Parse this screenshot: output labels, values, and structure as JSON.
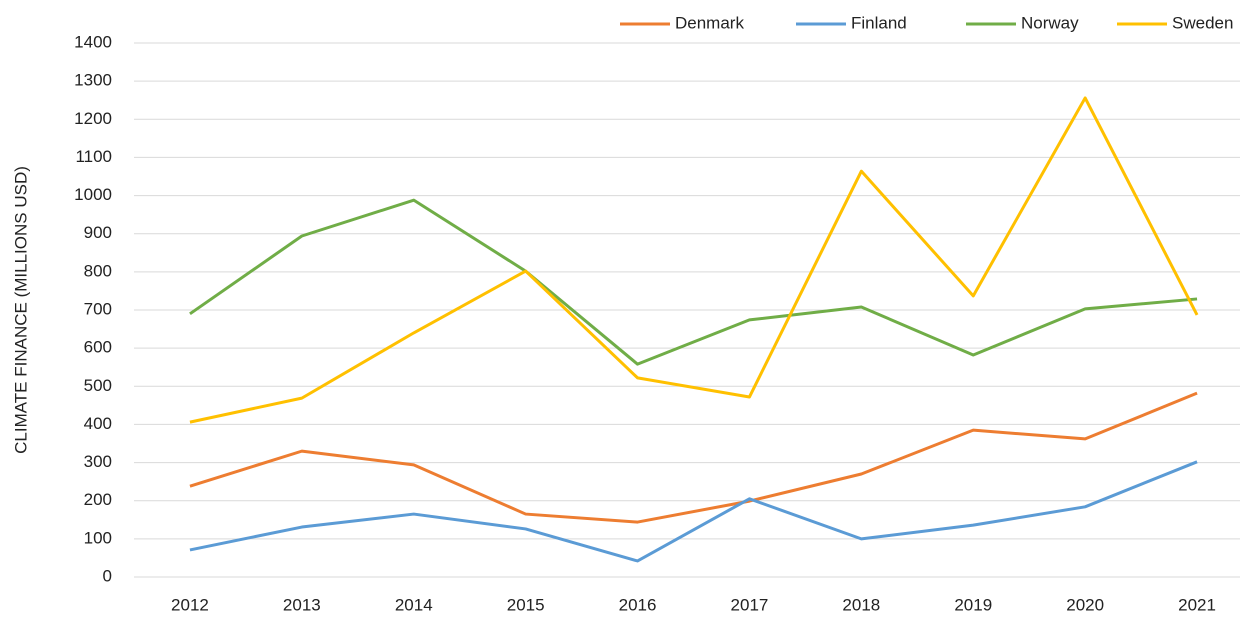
{
  "chart_data": {
    "type": "line",
    "y_label": "CLIMATE FINANCE (MILLIONS USD)",
    "categories": [
      "2012",
      "2013",
      "2014",
      "2015",
      "2016",
      "2017",
      "2018",
      "2019",
      "2020",
      "2021"
    ],
    "series": [
      {
        "name": "Denmark",
        "color": "#ed7d31",
        "values": [
          238,
          330,
          294,
          165,
          144,
          199,
          270,
          385,
          362,
          482
        ]
      },
      {
        "name": "Finland",
        "color": "#5b9bd5",
        "values": [
          71,
          131,
          165,
          126,
          42,
          205,
          100,
          136,
          184,
          302
        ]
      },
      {
        "name": "Norway",
        "color": "#70ad47",
        "values": [
          690,
          894,
          988,
          802,
          558,
          674,
          708,
          582,
          703,
          729
        ]
      },
      {
        "name": "Sweden",
        "color": "#ffc000",
        "values": [
          406,
          469,
          640,
          802,
          522,
          472,
          1064,
          737,
          1256,
          687
        ]
      }
    ],
    "ylim": [
      0,
      1400
    ],
    "yticks": [
      0,
      100,
      200,
      300,
      400,
      500,
      600,
      700,
      800,
      900,
      1000,
      1100,
      1200,
      1300,
      1400
    ],
    "grid": true,
    "legend": "top-right"
  }
}
